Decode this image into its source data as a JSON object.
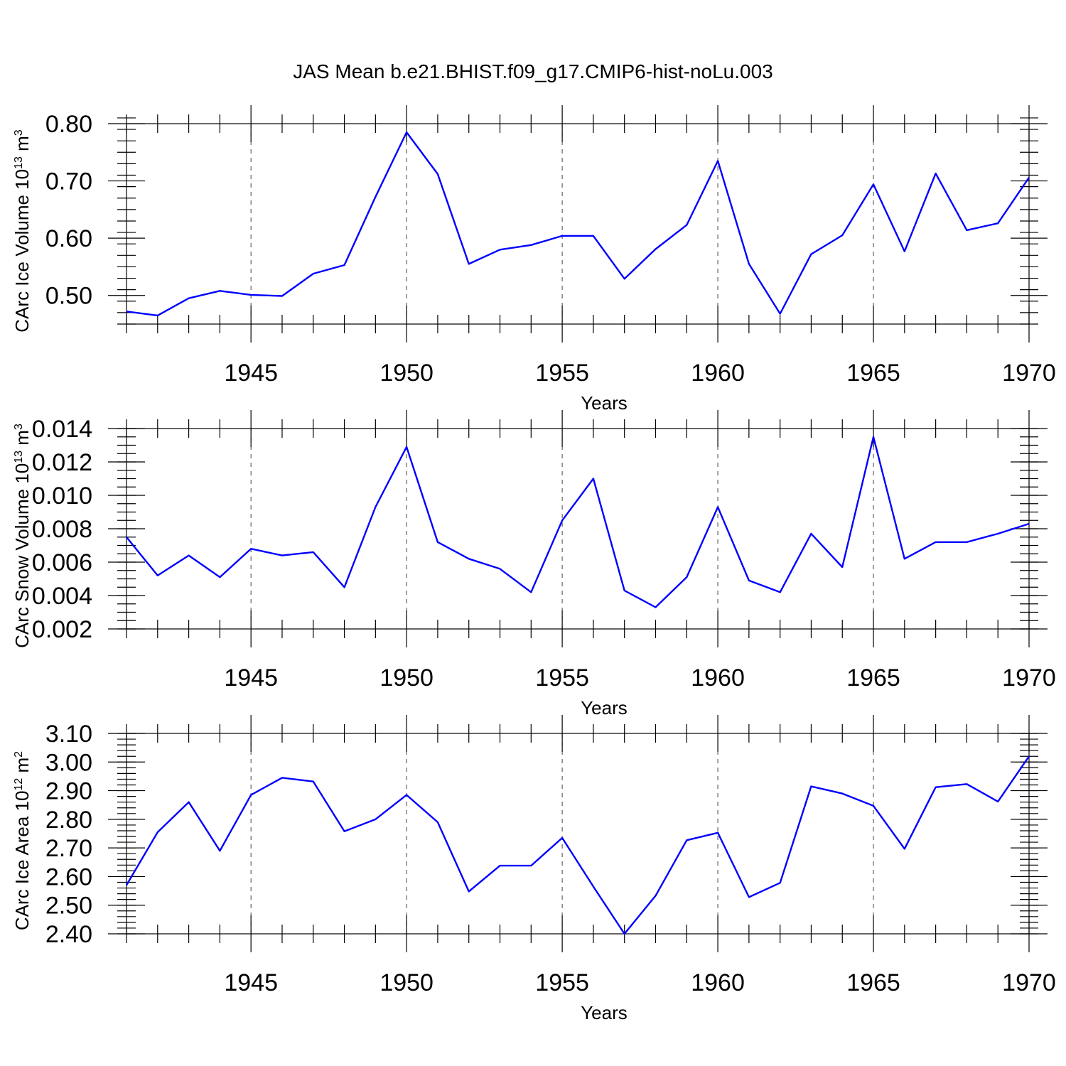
{
  "title": "JAS Mean b.e21.BHIST.f09_g17.CMIP6-hist-noLu.003",
  "colors": {
    "line": "#0000ff",
    "axis": "#000000",
    "grid": "#444444"
  },
  "chart_data": [
    {
      "type": "line",
      "ylabel_text": "CArc Ice Volume 10",
      "ylabel_exp": "13",
      "ylabel_unit": " m",
      "ylabel_unit_exp": "3",
      "xlabel": "Years",
      "xlim": [
        1941,
        1970
      ],
      "ylim": [
        0.45,
        0.8
      ],
      "yticks": [
        0.5,
        0.6,
        0.7,
        0.8
      ],
      "ytick_labels": [
        "0.50",
        "0.60",
        "0.70",
        "0.80"
      ],
      "yminor_step": 0.02,
      "xticks": [
        1945,
        1950,
        1955,
        1960,
        1965,
        1970
      ],
      "xtick_labels": [
        "1945",
        "1950",
        "1955",
        "1960",
        "1965",
        "1970"
      ],
      "grid": "x dashed",
      "x": [
        1941,
        1942,
        1943,
        1944,
        1945,
        1946,
        1947,
        1948,
        1949,
        1950,
        1951,
        1952,
        1953,
        1954,
        1955,
        1956,
        1957,
        1958,
        1959,
        1960,
        1961,
        1962,
        1963,
        1964,
        1965,
        1966,
        1967,
        1968,
        1969,
        1970
      ],
      "values": [
        0.472,
        0.465,
        0.495,
        0.508,
        0.501,
        0.499,
        0.538,
        0.553,
        0.672,
        0.785,
        0.712,
        0.555,
        0.58,
        0.588,
        0.604,
        0.604,
        0.529,
        0.581,
        0.623,
        0.735,
        0.555,
        0.468,
        0.572,
        0.605,
        0.694,
        0.577,
        0.713,
        0.614,
        0.626,
        0.706
      ]
    },
    {
      "type": "line",
      "ylabel_text": "CArc Snow Volume 10",
      "ylabel_exp": "13",
      "ylabel_unit": " m",
      "ylabel_unit_exp": "3",
      "xlabel": "Years",
      "xlim": [
        1941,
        1970
      ],
      "ylim": [
        0.002,
        0.014
      ],
      "yticks": [
        0.002,
        0.004,
        0.006,
        0.008,
        0.01,
        0.012,
        0.014
      ],
      "ytick_labels": [
        "0.002",
        "0.004",
        "0.006",
        "0.008",
        "0.010",
        "0.012",
        "0.014"
      ],
      "yminor_step": 0.0005,
      "xticks": [
        1945,
        1950,
        1955,
        1960,
        1965,
        1970
      ],
      "xtick_labels": [
        "1945",
        "1950",
        "1955",
        "1960",
        "1965",
        "1970"
      ],
      "grid": "x dashed",
      "x": [
        1941,
        1942,
        1943,
        1944,
        1945,
        1946,
        1947,
        1948,
        1949,
        1950,
        1951,
        1952,
        1953,
        1954,
        1955,
        1956,
        1957,
        1958,
        1959,
        1960,
        1961,
        1962,
        1963,
        1964,
        1965,
        1966,
        1967,
        1968,
        1969,
        1970
      ],
      "values": [
        0.0075,
        0.0052,
        0.0064,
        0.0051,
        0.0068,
        0.0064,
        0.0066,
        0.0045,
        0.0093,
        0.0129,
        0.0072,
        0.0062,
        0.0056,
        0.0042,
        0.0085,
        0.011,
        0.0043,
        0.0033,
        0.0051,
        0.0093,
        0.0049,
        0.0042,
        0.0077,
        0.0057,
        0.0135,
        0.0062,
        0.0072,
        0.0072,
        0.0077,
        0.0083
      ]
    },
    {
      "type": "line",
      "ylabel_text": "CArc Ice Area 10",
      "ylabel_exp": "12",
      "ylabel_unit": " m",
      "ylabel_unit_exp": "2",
      "xlabel": "Years",
      "xlim": [
        1941,
        1970
      ],
      "ylim": [
        2.4,
        3.1
      ],
      "yticks": [
        2.4,
        2.5,
        2.6,
        2.7,
        2.8,
        2.9,
        3.0,
        3.1
      ],
      "ytick_labels": [
        "2.40",
        "2.50",
        "2.60",
        "2.70",
        "2.80",
        "2.90",
        "3.00",
        "3.10"
      ],
      "yminor_step": 0.02,
      "xticks": [
        1945,
        1950,
        1955,
        1960,
        1965,
        1970
      ],
      "xtick_labels": [
        "1945",
        "1950",
        "1955",
        "1960",
        "1965",
        "1970"
      ],
      "grid": "x dashed",
      "x": [
        1941,
        1942,
        1943,
        1944,
        1945,
        1946,
        1947,
        1948,
        1949,
        1950,
        1951,
        1952,
        1953,
        1954,
        1955,
        1956,
        1957,
        1958,
        1959,
        1960,
        1961,
        1962,
        1963,
        1964,
        1965,
        1966,
        1967,
        1968,
        1969,
        1970
      ],
      "values": [
        2.57,
        2.755,
        2.86,
        2.69,
        2.885,
        2.945,
        2.932,
        2.758,
        2.8,
        2.885,
        2.79,
        2.548,
        2.638,
        2.638,
        2.735,
        2.565,
        2.4,
        2.533,
        2.727,
        2.753,
        2.528,
        2.578,
        2.915,
        2.89,
        2.847,
        2.697,
        2.912,
        2.923,
        2.862,
        3.02
      ]
    }
  ]
}
